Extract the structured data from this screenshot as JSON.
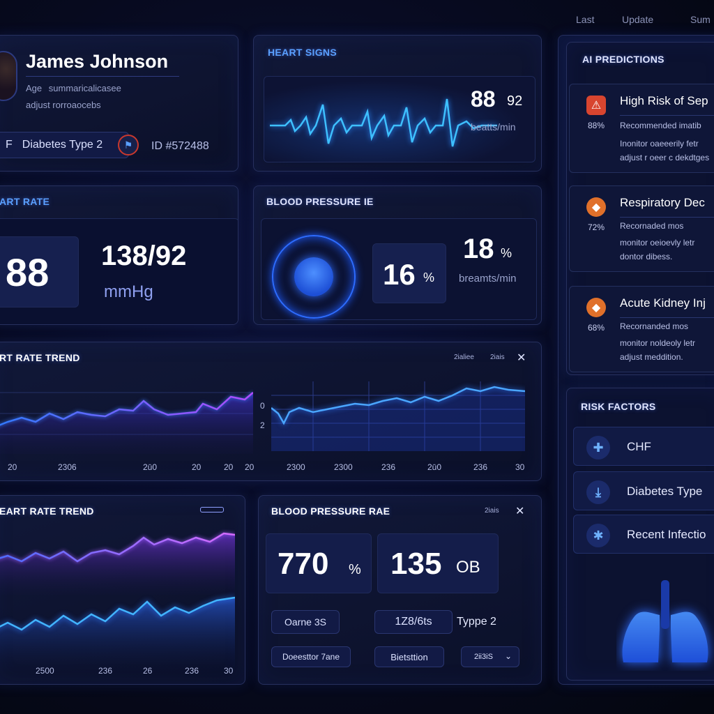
{
  "top_links": [
    "Last",
    "Update",
    "Sum"
  ],
  "patient": {
    "name": "James Johnson",
    "age_line": "Age",
    "age_value": "summaricalicasee",
    "adjust_line": "adjust rorroaocebs",
    "condition_prefix": "F",
    "condition": "Diabetes Type 2",
    "id": "ID #572488"
  },
  "heart_signs": {
    "title": "HEART SIGNS",
    "value": "88",
    "value2": "92",
    "unit": "beatts/min"
  },
  "heart_rate": {
    "title": "ART RATE",
    "value": "88",
    "bp_value": "138/92",
    "bp_unit": "mmHg"
  },
  "blood_pressure": {
    "title": "BLOOD PRESSURE IE",
    "percent": "16",
    "percent_unit": "%",
    "resp_value": "18",
    "resp_unit_pct": "%",
    "resp_unit": "breamts/min"
  },
  "trend1": {
    "title": "RT RATE TREND",
    "ctrl1": "2ialiee",
    "ctrl2": "2iais",
    "left_axis": [
      "20",
      "2306",
      "2ū0",
      "20",
      "20",
      "20"
    ],
    "right_axis": [
      "2300",
      "2300",
      "236",
      "2ū0",
      "236",
      "30"
    ],
    "right_side_ticks": [
      "0",
      "2"
    ]
  },
  "trend2": {
    "title": "EART RATE TREND",
    "axis": [
      "2500",
      "236",
      "26",
      "236",
      "30"
    ]
  },
  "bp_rate": {
    "title": "BLOOD PRESSURE RAE",
    "ctrl": "2iais",
    "stat1_value": "770",
    "stat1_unit": "%",
    "stat2_value": "135",
    "stat2_unit": "OB",
    "chip1": "Oarne 3S",
    "chip2": "1Z8/6ts",
    "chip2_suffix": "Typpe 2",
    "chip3": "Doeesttor 7ane",
    "chip4": "Bietsttion",
    "chip5": "2ii3iS"
  },
  "ai_predictions": {
    "title": "AI PREDICTIONS",
    "items": [
      {
        "title": "High Risk of Sep",
        "pct": "88%",
        "lines": [
          "Recommended imatib",
          "Inonitor oaeeerily fetr",
          "adjust r oeer c dekdtges"
        ],
        "color": "#d8452f",
        "icon": "alert-icon"
      },
      {
        "title": "Respiratory Dec",
        "pct": "72%",
        "lines": [
          "Recornaded mos",
          "monitor oeioevly letr",
          "dontor dibess."
        ],
        "color": "#e0702a",
        "icon": "warning-icon"
      },
      {
        "title": "Acute Kidney Inj",
        "pct": "68%",
        "lines": [
          "Recornanded mos",
          "monitor noldeoly letr",
          "adjust meddition."
        ],
        "color": "#e0702a",
        "icon": "warning-icon"
      }
    ]
  },
  "risk_factors": {
    "title": "RISK FACTORS",
    "items": [
      {
        "label": "CHF",
        "icon": "heart-figure-icon"
      },
      {
        "label": "Diabetes Type",
        "icon": "download-icon"
      },
      {
        "label": "Recent Infectio",
        "icon": "pin-icon"
      }
    ]
  },
  "colors": {
    "accent": "#3f8cff",
    "purple": "#a05cff",
    "bg": "#070a1f"
  }
}
